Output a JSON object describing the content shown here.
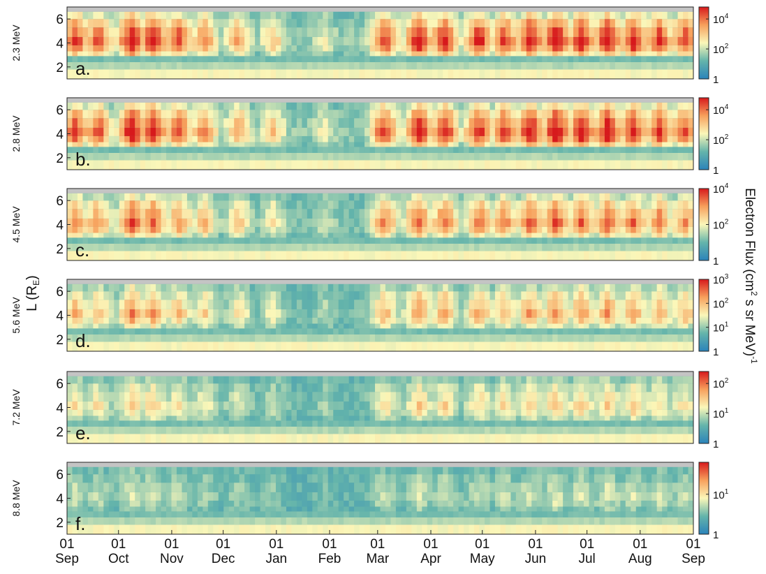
{
  "chart_data": {
    "type": "heatmap",
    "colors": {
      "gray": "#c4c4c4",
      "low": "#2b83ba",
      "mid_low": "#64b4ab",
      "mid": "#fbf7b9",
      "mid_high": "#f7a05c",
      "high": "#d7191c"
    },
    "xlabel": "",
    "ylabel": "L (R",
    "ylabel_sub": "E",
    "ylabel_close": ")",
    "colorbar_label": "Electron Flux (cm",
    "colorbar_label_sup": "2",
    "colorbar_label_rest": " s sr MeV)",
    "colorbar_label_exp": "-1",
    "x_ticks": [
      {
        "day": "01",
        "month": "Sep",
        "pos": 0
      },
      {
        "day": "01",
        "month": "Oct",
        "pos": 30
      },
      {
        "day": "01",
        "month": "Nov",
        "pos": 61
      },
      {
        "day": "01",
        "month": "Dec",
        "pos": 91
      },
      {
        "day": "01",
        "month": "Jan",
        "pos": 122
      },
      {
        "day": "01",
        "month": "Feb",
        "pos": 153
      },
      {
        "day": "01",
        "month": "Mar",
        "pos": 181
      },
      {
        "day": "01",
        "month": "Apr",
        "pos": 212
      },
      {
        "day": "01",
        "month": "May",
        "pos": 242
      },
      {
        "day": "01",
        "month": "Jun",
        "pos": 273
      },
      {
        "day": "01",
        "month": "Jul",
        "pos": 303
      },
      {
        "day": "01",
        "month": "Aug",
        "pos": 334
      },
      {
        "day": "01",
        "month": "Sep",
        "pos": 365
      }
    ],
    "x_range": [
      0,
      365
    ],
    "y_range": [
      1,
      7
    ],
    "y_ticks": [
      2,
      4,
      6
    ],
    "panels": [
      {
        "label": "a.",
        "energy": "2.3 MeV",
        "cbar_ticks": [
          {
            "base": "1",
            "exp": "",
            "pos": 0
          },
          {
            "base": "10",
            "exp": "2",
            "pos": 2
          },
          {
            "base": "10",
            "exp": "4",
            "pos": 4
          }
        ],
        "cbar_range": [
          0,
          4.8
        ],
        "peak": 4.8
      },
      {
        "label": "b.",
        "energy": "2.8 MeV",
        "cbar_ticks": [
          {
            "base": "1",
            "exp": "",
            "pos": 0
          },
          {
            "base": "10",
            "exp": "2",
            "pos": 2
          },
          {
            "base": "10",
            "exp": "4",
            "pos": 4
          }
        ],
        "cbar_range": [
          0,
          4.8
        ],
        "peak": 4.8
      },
      {
        "label": "c.",
        "energy": "4.5 MeV",
        "cbar_ticks": [
          {
            "base": "1",
            "exp": "",
            "pos": 0
          },
          {
            "base": "10",
            "exp": "2",
            "pos": 2
          },
          {
            "base": "10",
            "exp": "4",
            "pos": 4
          }
        ],
        "cbar_range": [
          0,
          4
        ],
        "peak": 4
      },
      {
        "label": "d.",
        "energy": "5.6 MeV",
        "cbar_ticks": [
          {
            "base": "1",
            "exp": "",
            "pos": 0
          },
          {
            "base": "10",
            "exp": "1",
            "pos": 1
          },
          {
            "base": "10",
            "exp": "2",
            "pos": 2
          },
          {
            "base": "10",
            "exp": "3",
            "pos": 3
          }
        ],
        "cbar_range": [
          0,
          3
        ],
        "peak": 3
      },
      {
        "label": "e.",
        "energy": "7.2 MeV",
        "cbar_ticks": [
          {
            "base": "1",
            "exp": "",
            "pos": 0
          },
          {
            "base": "10",
            "exp": "1",
            "pos": 1
          },
          {
            "base": "10",
            "exp": "2",
            "pos": 2
          }
        ],
        "cbar_range": [
          0,
          2.4
        ],
        "peak": 2.4
      },
      {
        "label": "f.",
        "energy": "8.8 MeV",
        "cbar_ticks": [
          {
            "base": "1",
            "exp": "",
            "pos": 0
          },
          {
            "base": "10",
            "exp": "1",
            "pos": 1
          }
        ],
        "cbar_range": [
          0,
          1.8
        ],
        "peak": 1.8
      }
    ]
  }
}
